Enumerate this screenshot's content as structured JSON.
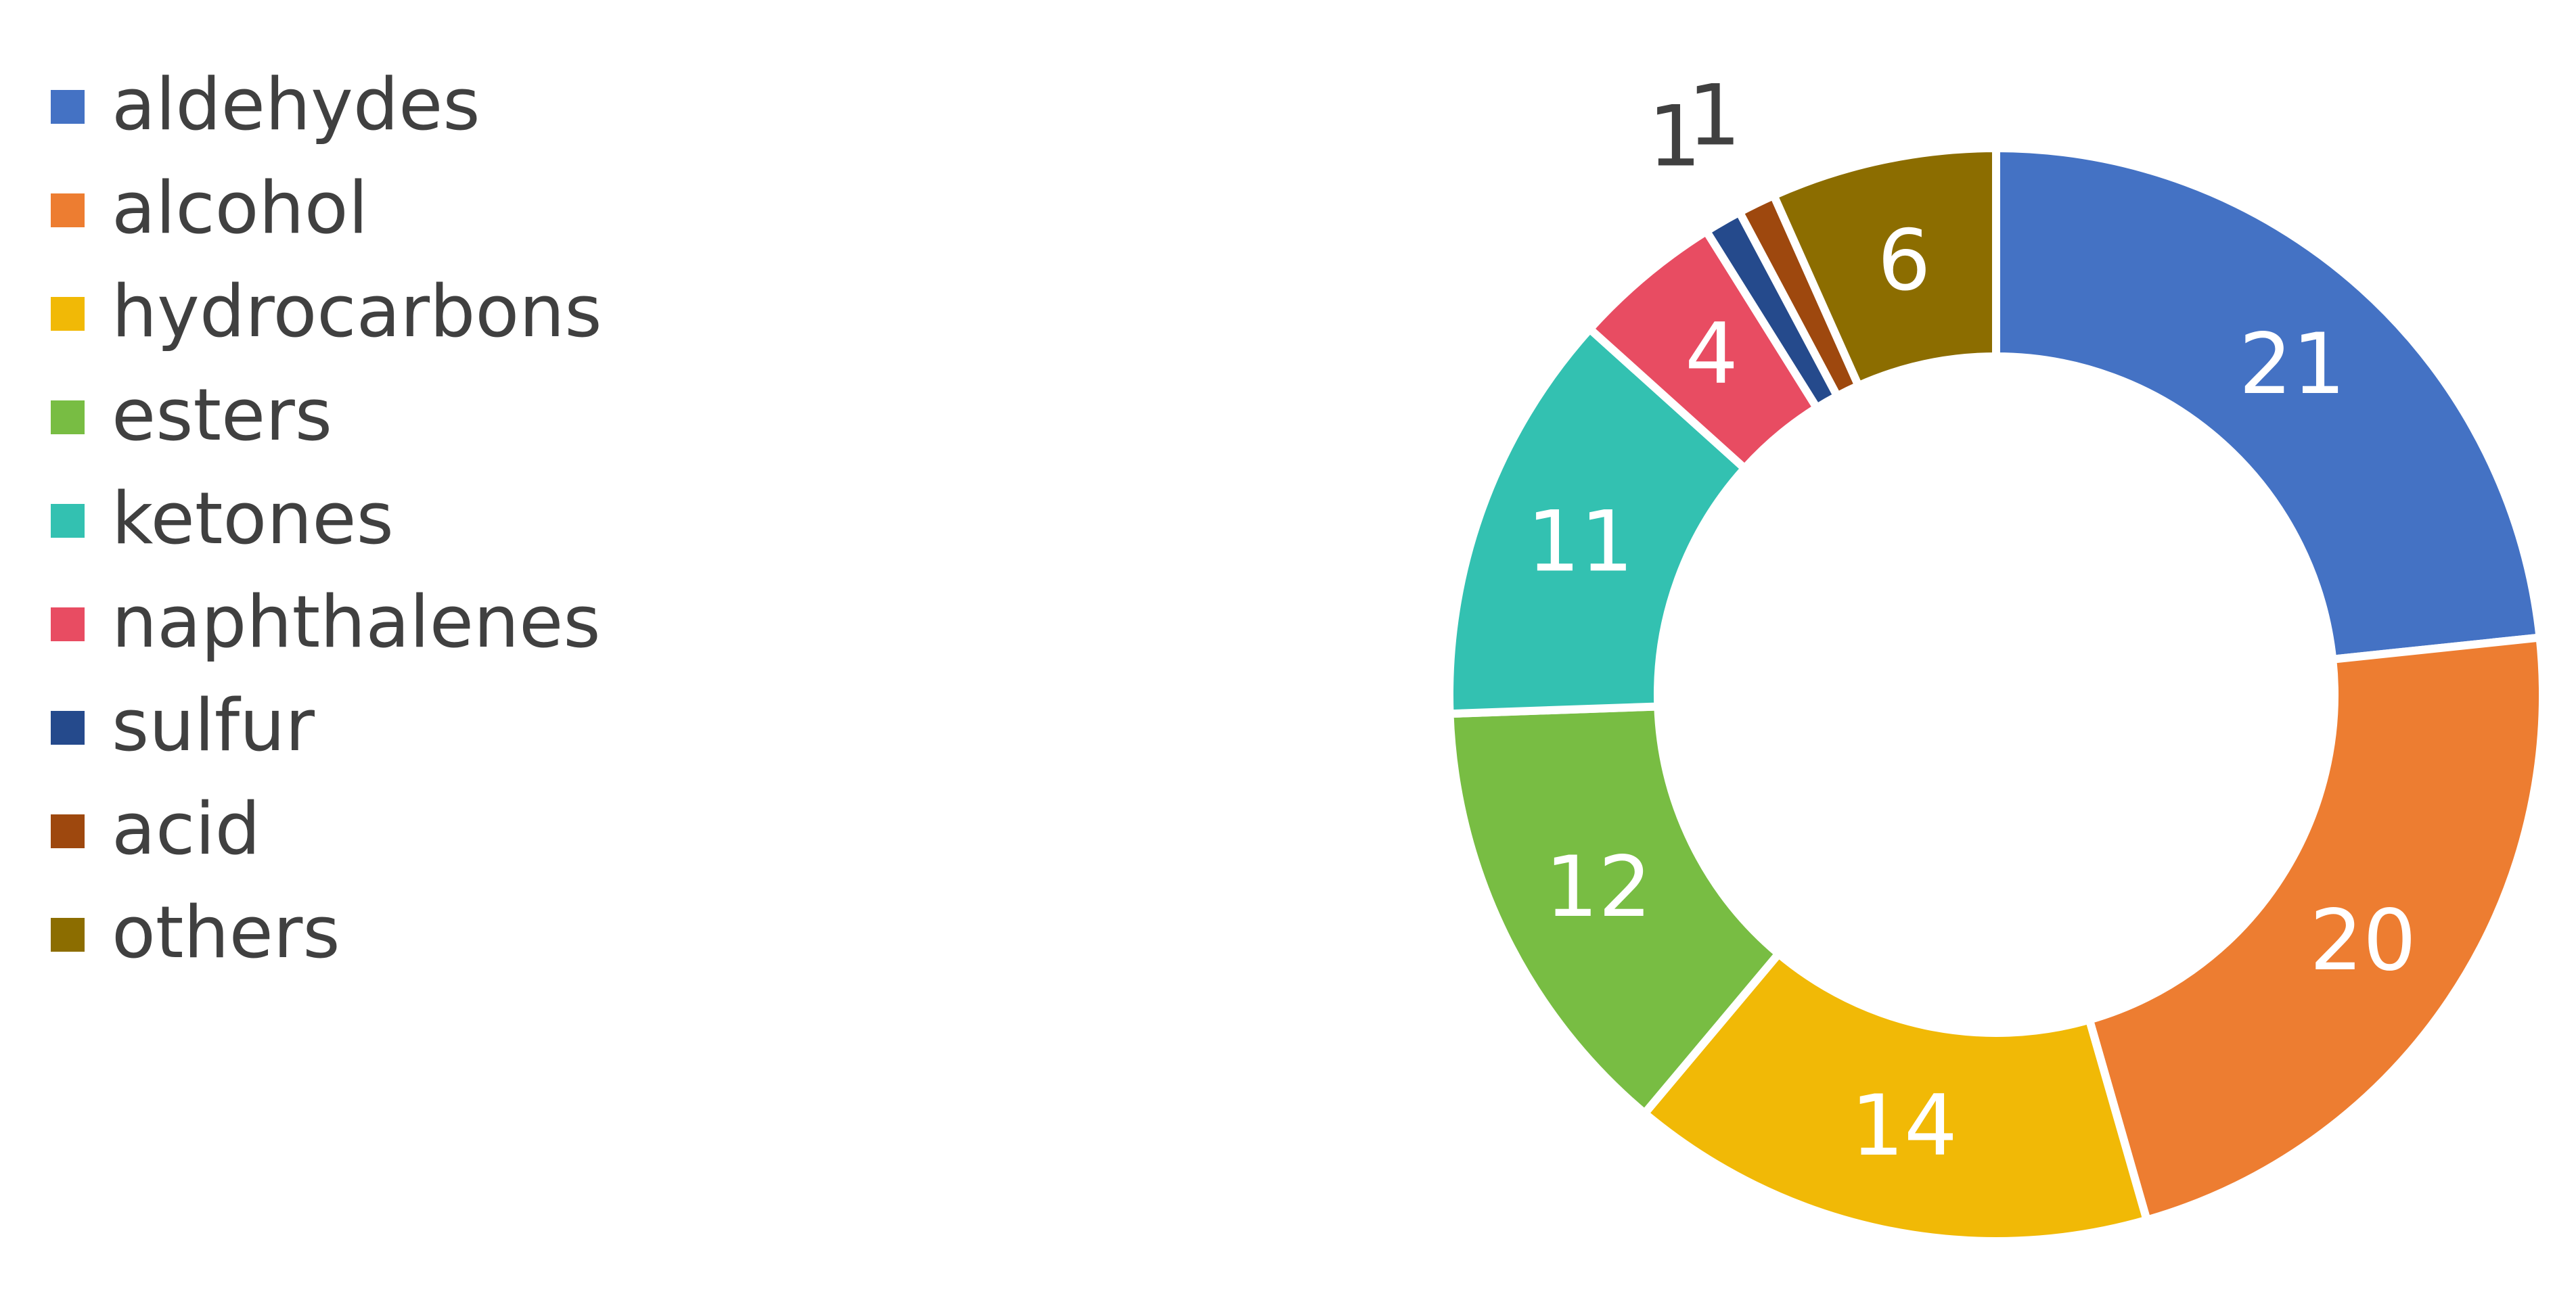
{
  "chart_data": {
    "type": "donut",
    "categories": [
      "aldehydes",
      "alcohol",
      "hydrocarbons",
      "esters",
      "ketones",
      "naphthalenes",
      "sulfur",
      "acid",
      "others"
    ],
    "values": [
      21,
      20,
      14,
      12,
      11,
      4,
      1,
      1,
      6
    ],
    "colors": [
      "#4472c4",
      "#ed7d31",
      "#f1b906",
      "#78bd43",
      "#33c1b1",
      "#e84c62",
      "#254a8c",
      "#9e480e",
      "#8c6d00"
    ],
    "legend": "left"
  }
}
